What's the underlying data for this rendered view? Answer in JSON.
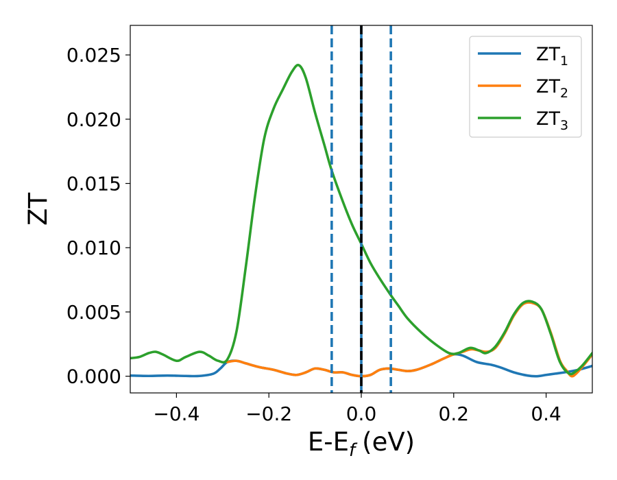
{
  "chart_data": {
    "type": "line",
    "xlabel": "E-E",
    "xlabel_sub": "f",
    "xlabel_unit": "(eV)",
    "ylabel": "ZT",
    "xlim": [
      -0.5,
      0.5
    ],
    "ylim": [
      -0.0013,
      0.0273
    ],
    "x_ticks": [
      -0.4,
      -0.2,
      0.0,
      0.2,
      0.4
    ],
    "x_tick_labels": [
      "−0.4",
      "−0.2",
      "0.0",
      "0.2",
      "0.4"
    ],
    "y_ticks": [
      0.0,
      0.005,
      0.01,
      0.015,
      0.02,
      0.025
    ],
    "y_tick_labels": [
      "0.000",
      "0.005",
      "0.010",
      "0.015",
      "0.020",
      "0.025"
    ],
    "grid": false,
    "legend_position": "top-right",
    "vertical_lines": [
      {
        "x": -0.064,
        "style": "dashed",
        "color": "#1f77b4"
      },
      {
        "x": 0.0,
        "style": "solid",
        "color": "#1f77b4"
      },
      {
        "x": 0.0,
        "style": "dashed",
        "color": "#000000"
      },
      {
        "x": 0.064,
        "style": "dashed",
        "color": "#1f77b4"
      }
    ],
    "series": [
      {
        "name": "ZT",
        "name_sub": "1",
        "color": "#1f77b4",
        "points": [
          [
            -0.5,
            5e-05
          ],
          [
            -0.46,
            2e-05
          ],
          [
            -0.42,
            5e-05
          ],
          [
            -0.38,
            2e-05
          ],
          [
            -0.35,
            2e-05
          ],
          [
            -0.32,
            0.0002
          ],
          [
            -0.305,
            0.0006
          ],
          [
            -0.29,
            0.0011
          ],
          [
            -0.27,
            0.0012
          ],
          [
            -0.25,
            0.001
          ],
          [
            -0.22,
            0.0007
          ],
          [
            -0.19,
            0.0005
          ],
          [
            -0.16,
            0.0002
          ],
          [
            -0.14,
            0.0001
          ],
          [
            -0.12,
            0.0003
          ],
          [
            -0.1,
            0.0006
          ],
          [
            -0.08,
            0.0005
          ],
          [
            -0.06,
            0.0003
          ],
          [
            -0.04,
            0.0003
          ],
          [
            -0.02,
            0.0001
          ],
          [
            0.0,
            0.0
          ],
          [
            0.02,
            0.0001
          ],
          [
            0.04,
            0.0005
          ],
          [
            0.06,
            0.0006
          ],
          [
            0.08,
            0.0005
          ],
          [
            0.1,
            0.0004
          ],
          [
            0.12,
            0.0005
          ],
          [
            0.15,
            0.0009
          ],
          [
            0.18,
            0.0014
          ],
          [
            0.2,
            0.0017
          ],
          [
            0.22,
            0.0016
          ],
          [
            0.25,
            0.0011
          ],
          [
            0.28,
            0.0009
          ],
          [
            0.3,
            0.0007
          ],
          [
            0.33,
            0.0003
          ],
          [
            0.36,
            5e-05
          ],
          [
            0.38,
            0.0
          ],
          [
            0.4,
            0.0001
          ],
          [
            0.42,
            0.0002
          ],
          [
            0.44,
            0.0003
          ],
          [
            0.47,
            0.0005
          ],
          [
            0.5,
            0.0008
          ]
        ]
      },
      {
        "name": "ZT",
        "name_sub": "2",
        "color": "#ff7f0e",
        "points": [
          [
            -0.29,
            0.0011
          ],
          [
            -0.27,
            0.0012
          ],
          [
            -0.25,
            0.001
          ],
          [
            -0.22,
            0.0007
          ],
          [
            -0.19,
            0.0005
          ],
          [
            -0.16,
            0.0002
          ],
          [
            -0.14,
            0.0001
          ],
          [
            -0.12,
            0.0003
          ],
          [
            -0.1,
            0.0006
          ],
          [
            -0.08,
            0.0005
          ],
          [
            -0.06,
            0.0003
          ],
          [
            -0.04,
            0.0003
          ],
          [
            -0.02,
            0.0001
          ],
          [
            0.0,
            0.0
          ],
          [
            0.02,
            0.0001
          ],
          [
            0.04,
            0.0005
          ],
          [
            0.06,
            0.0006
          ],
          [
            0.08,
            0.0005
          ],
          [
            0.1,
            0.0004
          ],
          [
            0.12,
            0.0005
          ],
          [
            0.15,
            0.0009
          ],
          [
            0.18,
            0.0014
          ],
          [
            0.2,
            0.0017
          ],
          [
            0.22,
            0.0019
          ],
          [
            0.24,
            0.0021
          ],
          [
            0.27,
            0.0019
          ],
          [
            0.29,
            0.0022
          ],
          [
            0.31,
            0.0033
          ],
          [
            0.33,
            0.0047
          ],
          [
            0.35,
            0.0056
          ],
          [
            0.37,
            0.0057
          ],
          [
            0.39,
            0.0052
          ],
          [
            0.41,
            0.0034
          ],
          [
            0.43,
            0.0012
          ],
          [
            0.445,
            0.0004
          ],
          [
            0.455,
            0.0
          ],
          [
            0.465,
            0.0002
          ],
          [
            0.48,
            0.0008
          ],
          [
            0.5,
            0.0017
          ]
        ]
      },
      {
        "name": "ZT",
        "name_sub": "3",
        "color": "#2ca02c",
        "points": [
          [
            -0.5,
            0.0014
          ],
          [
            -0.48,
            0.0015
          ],
          [
            -0.46,
            0.0018
          ],
          [
            -0.445,
            0.0019
          ],
          [
            -0.43,
            0.0017
          ],
          [
            -0.4,
            0.0012
          ],
          [
            -0.38,
            0.0015
          ],
          [
            -0.35,
            0.0019
          ],
          [
            -0.33,
            0.0016
          ],
          [
            -0.31,
            0.0012
          ],
          [
            -0.29,
            0.0013
          ],
          [
            -0.27,
            0.0035
          ],
          [
            -0.25,
            0.0085
          ],
          [
            -0.23,
            0.014
          ],
          [
            -0.21,
            0.0185
          ],
          [
            -0.19,
            0.0208
          ],
          [
            -0.17,
            0.0223
          ],
          [
            -0.15,
            0.0237
          ],
          [
            -0.135,
            0.0242
          ],
          [
            -0.12,
            0.0232
          ],
          [
            -0.1,
            0.0205
          ],
          [
            -0.08,
            0.018
          ],
          [
            -0.064,
            0.016
          ],
          [
            -0.04,
            0.0136
          ],
          [
            -0.02,
            0.0118
          ],
          [
            0.0,
            0.0103
          ],
          [
            0.02,
            0.0088
          ],
          [
            0.04,
            0.0076
          ],
          [
            0.064,
            0.0063
          ],
          [
            0.08,
            0.0055
          ],
          [
            0.1,
            0.0045
          ],
          [
            0.13,
            0.0034
          ],
          [
            0.16,
            0.0025
          ],
          [
            0.19,
            0.0018
          ],
          [
            0.21,
            0.0018
          ],
          [
            0.235,
            0.0022
          ],
          [
            0.255,
            0.002
          ],
          [
            0.27,
            0.0018
          ],
          [
            0.29,
            0.0023
          ],
          [
            0.31,
            0.0034
          ],
          [
            0.33,
            0.0048
          ],
          [
            0.35,
            0.0057
          ],
          [
            0.37,
            0.0058
          ],
          [
            0.39,
            0.0052
          ],
          [
            0.41,
            0.0033
          ],
          [
            0.43,
            0.0011
          ],
          [
            0.45,
            0.0002
          ],
          [
            0.465,
            0.0004
          ],
          [
            0.48,
            0.0009
          ],
          [
            0.5,
            0.0018
          ]
        ]
      }
    ]
  }
}
